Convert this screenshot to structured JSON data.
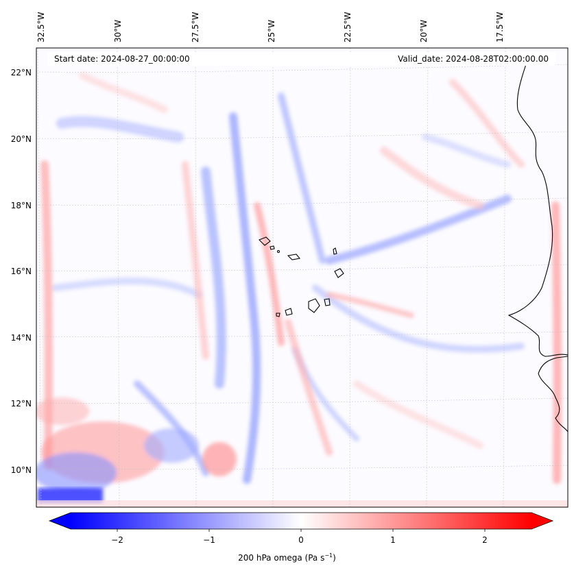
{
  "header": {
    "start_date": "Start date: 2024-08-27_00:00:00",
    "valid_date": "Valid_date: 2024-08-28T02:00:00.00"
  },
  "map": {
    "lon_labels": [
      "32.5°W",
      "30°W",
      "27.5°W",
      "25°W",
      "22.5°W",
      "20°W",
      "17.5°W"
    ],
    "lat_labels": [
      "22°N",
      "20°N",
      "18°N",
      "16°N",
      "14°N",
      "12°N",
      "10°N"
    ],
    "field": "omega",
    "colormap": "bwr",
    "blue_color": "#0000ff",
    "white_color": "#ffffff",
    "red_color": "#ff0000"
  },
  "colorbar": {
    "ticks": [
      "−2",
      "−1",
      "0",
      "1",
      "2"
    ],
    "label_main": "200 hPa omega (Pa s",
    "label_sup": "−1",
    "label_close": ")"
  }
}
